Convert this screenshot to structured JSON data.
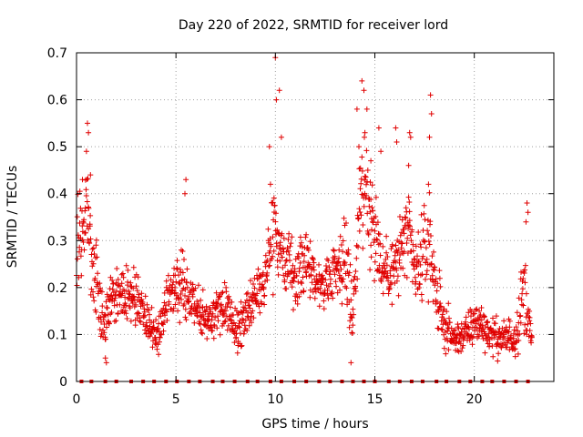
{
  "chart_data": {
    "type": "scatter",
    "title": "Day 220 of 2022, SRMTID for receiver lord",
    "xlabel": "GPS time / hours",
    "ylabel": "SRMTID / TECUs",
    "xlim": [
      0,
      24
    ],
    "ylim": [
      0,
      0.7
    ],
    "x_ticks": [
      0,
      5,
      10,
      15,
      20
    ],
    "y_ticks": [
      0,
      0.1,
      0.2,
      0.3,
      0.4,
      0.5,
      0.6,
      0.7
    ],
    "y_tick_labels": [
      "0",
      "0.1",
      "0.2",
      "0.3",
      "0.4",
      "0.5",
      "0.6",
      "0.7"
    ],
    "grid": true,
    "marker": "+",
    "series_color": "#e00000",
    "baseline_markers_x": [
      0.25,
      0.75,
      1.45,
      2.0,
      2.75,
      3.35,
      3.9,
      4.5,
      5.05,
      5.65,
      6.2,
      6.85,
      7.35,
      7.95,
      8.6,
      9.1,
      9.75,
      10.3,
      10.95,
      11.55,
      12.2,
      12.75,
      13.35,
      13.9,
      14.45,
      15.0,
      15.7,
      16.25,
      16.85,
      17.4,
      18.1,
      18.6,
      19.25,
      19.8,
      20.4,
      20.9,
      21.5,
      22.1,
      22.7
    ],
    "scatter_envelope": [
      {
        "t": 0.0,
        "center": 0.28,
        "spread": 0.1
      },
      {
        "t": 0.5,
        "center": 0.38,
        "spread": 0.1
      },
      {
        "t": 0.9,
        "center": 0.25,
        "spread": 0.14
      },
      {
        "t": 1.3,
        "center": 0.13,
        "spread": 0.06
      },
      {
        "t": 2.0,
        "center": 0.19,
        "spread": 0.06
      },
      {
        "t": 2.8,
        "center": 0.19,
        "spread": 0.06
      },
      {
        "t": 3.5,
        "center": 0.13,
        "spread": 0.04
      },
      {
        "t": 4.1,
        "center": 0.1,
        "spread": 0.04
      },
      {
        "t": 4.8,
        "center": 0.2,
        "spread": 0.06
      },
      {
        "t": 5.4,
        "center": 0.2,
        "spread": 0.07
      },
      {
        "t": 6.0,
        "center": 0.16,
        "spread": 0.05
      },
      {
        "t": 6.8,
        "center": 0.13,
        "spread": 0.05
      },
      {
        "t": 7.5,
        "center": 0.16,
        "spread": 0.06
      },
      {
        "t": 8.1,
        "center": 0.11,
        "spread": 0.05
      },
      {
        "t": 8.8,
        "center": 0.16,
        "spread": 0.05
      },
      {
        "t": 9.4,
        "center": 0.22,
        "spread": 0.06
      },
      {
        "t": 9.9,
        "center": 0.34,
        "spread": 0.12
      },
      {
        "t": 10.4,
        "center": 0.26,
        "spread": 0.07
      },
      {
        "t": 11.0,
        "center": 0.22,
        "spread": 0.07
      },
      {
        "t": 11.6,
        "center": 0.26,
        "spread": 0.06
      },
      {
        "t": 12.3,
        "center": 0.2,
        "spread": 0.05
      },
      {
        "t": 12.9,
        "center": 0.24,
        "spread": 0.06
      },
      {
        "t": 13.5,
        "center": 0.26,
        "spread": 0.1
      },
      {
        "t": 13.9,
        "center": 0.15,
        "spread": 0.08
      },
      {
        "t": 14.3,
        "center": 0.42,
        "spread": 0.12
      },
      {
        "t": 14.8,
        "center": 0.36,
        "spread": 0.12
      },
      {
        "t": 15.4,
        "center": 0.24,
        "spread": 0.07
      },
      {
        "t": 16.0,
        "center": 0.24,
        "spread": 0.08
      },
      {
        "t": 16.6,
        "center": 0.32,
        "spread": 0.1
      },
      {
        "t": 17.1,
        "center": 0.22,
        "spread": 0.07
      },
      {
        "t": 17.7,
        "center": 0.3,
        "spread": 0.12
      },
      {
        "t": 18.3,
        "center": 0.14,
        "spread": 0.06
      },
      {
        "t": 18.9,
        "center": 0.09,
        "spread": 0.04
      },
      {
        "t": 19.5,
        "center": 0.1,
        "spread": 0.04
      },
      {
        "t": 20.2,
        "center": 0.13,
        "spread": 0.05
      },
      {
        "t": 20.8,
        "center": 0.1,
        "spread": 0.04
      },
      {
        "t": 21.4,
        "center": 0.09,
        "spread": 0.04
      },
      {
        "t": 22.1,
        "center": 0.1,
        "spread": 0.05
      },
      {
        "t": 22.5,
        "center": 0.2,
        "spread": 0.1
      },
      {
        "t": 22.9,
        "center": 0.08,
        "spread": 0.02
      }
    ],
    "notable_points": [
      {
        "x": 0.55,
        "y": 0.55
      },
      {
        "x": 0.6,
        "y": 0.53
      },
      {
        "x": 0.5,
        "y": 0.49
      },
      {
        "x": 0.7,
        "y": 0.44
      },
      {
        "x": 0.3,
        "y": 0.43
      },
      {
        "x": 5.5,
        "y": 0.43
      },
      {
        "x": 5.45,
        "y": 0.4
      },
      {
        "x": 9.7,
        "y": 0.5
      },
      {
        "x": 9.75,
        "y": 0.42
      },
      {
        "x": 10.0,
        "y": 0.69
      },
      {
        "x": 10.05,
        "y": 0.6
      },
      {
        "x": 10.2,
        "y": 0.62
      },
      {
        "x": 10.3,
        "y": 0.52
      },
      {
        "x": 14.1,
        "y": 0.58
      },
      {
        "x": 14.2,
        "y": 0.5
      },
      {
        "x": 14.35,
        "y": 0.64
      },
      {
        "x": 14.45,
        "y": 0.62
      },
      {
        "x": 14.6,
        "y": 0.58
      },
      {
        "x": 14.5,
        "y": 0.53
      },
      {
        "x": 14.8,
        "y": 0.47
      },
      {
        "x": 15.2,
        "y": 0.54
      },
      {
        "x": 15.3,
        "y": 0.49
      },
      {
        "x": 16.05,
        "y": 0.54
      },
      {
        "x": 16.1,
        "y": 0.51
      },
      {
        "x": 16.75,
        "y": 0.53
      },
      {
        "x": 16.8,
        "y": 0.52
      },
      {
        "x": 16.7,
        "y": 0.46
      },
      {
        "x": 17.8,
        "y": 0.61
      },
      {
        "x": 17.85,
        "y": 0.57
      },
      {
        "x": 17.75,
        "y": 0.52
      },
      {
        "x": 17.7,
        "y": 0.42
      },
      {
        "x": 22.65,
        "y": 0.38
      },
      {
        "x": 22.7,
        "y": 0.36
      },
      {
        "x": 22.6,
        "y": 0.34
      },
      {
        "x": 1.45,
        "y": 0.05
      },
      {
        "x": 1.5,
        "y": 0.04
      },
      {
        "x": 13.8,
        "y": 0.04
      }
    ]
  }
}
